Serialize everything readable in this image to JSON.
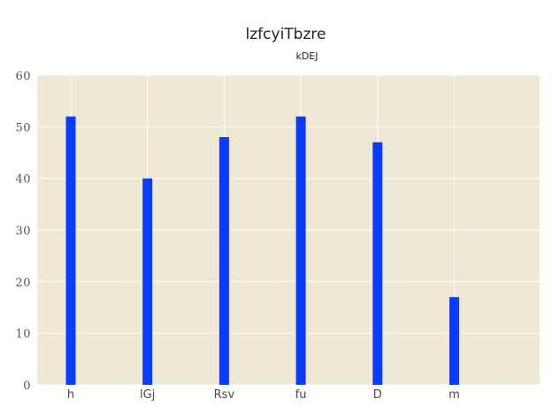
{
  "chart_data": {
    "type": "bar",
    "title": "lzfcyiTbzre",
    "subtitle": "kDEJ",
    "categories": [
      "h",
      "lGj",
      "Rsv",
      "fu",
      "D",
      "m"
    ],
    "series": [
      {
        "values": [
          52,
          40,
          48,
          52,
          47,
          17
        ]
      }
    ],
    "xlabel": "",
    "ylabel": "",
    "ylim": [
      0,
      60
    ],
    "yticks": [
      0,
      10,
      20,
      30,
      40,
      50,
      60
    ],
    "grid": true,
    "legend": "none",
    "colors": {
      "bar": "#0a3cff",
      "plot_background": "#efe8d5",
      "grid": "#ffffff"
    }
  }
}
